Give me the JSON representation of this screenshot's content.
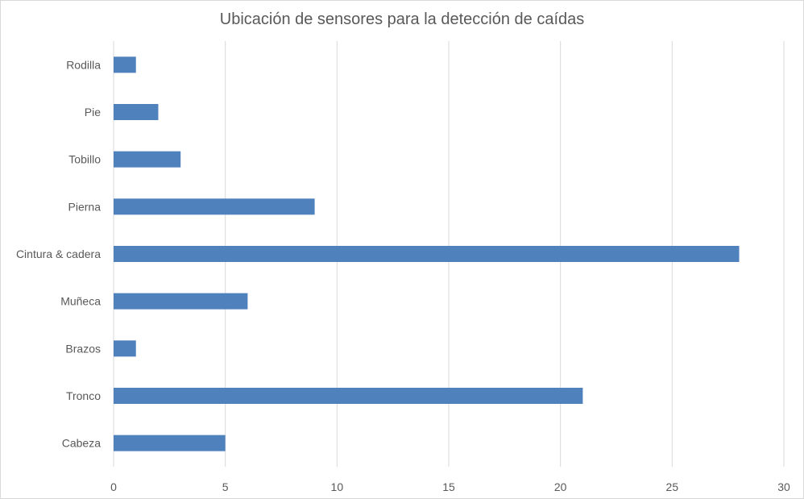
{
  "chart_data": {
    "type": "bar",
    "orientation": "horizontal",
    "title": "Ubicación de sensores para la detección de caídas",
    "xlabel": "",
    "ylabel": "",
    "categories": [
      "Cabeza",
      "Tronco",
      "Brazos",
      "Muñeca",
      "Cintura & cadera",
      "Pierna",
      "Tobillo",
      "Pie",
      "Rodilla"
    ],
    "values": [
      5,
      21,
      1,
      6,
      28,
      9,
      3,
      2,
      1
    ],
    "xlim": [
      0,
      30
    ],
    "xticks": [
      0,
      5,
      10,
      15,
      20,
      25,
      30
    ],
    "grid": true,
    "legend": "none",
    "bar_color": "#4f81bd",
    "grid_color": "#d9d9d9"
  }
}
